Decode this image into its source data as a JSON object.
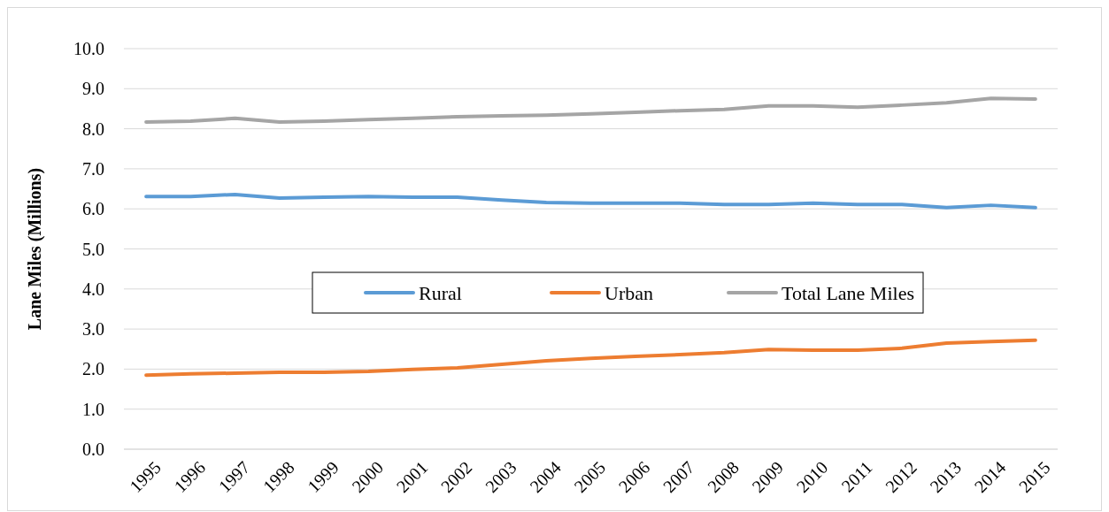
{
  "chart_data": {
    "type": "line",
    "ylabel": "Lane Miles (Millions)",
    "categories": [
      "1995",
      "1996",
      "1997",
      "1998",
      "1999",
      "2000",
      "2001",
      "2002",
      "2003",
      "2004",
      "2005",
      "2006",
      "2007",
      "2008",
      "2009",
      "2010",
      "2011",
      "2012",
      "2013",
      "2014",
      "2015"
    ],
    "series": [
      {
        "name": "Rural",
        "color": "#5b9bd5",
        "values": [
          6.31,
          6.31,
          6.36,
          6.27,
          6.29,
          6.31,
          6.29,
          6.29,
          6.22,
          6.16,
          6.14,
          6.14,
          6.14,
          6.11,
          6.11,
          6.14,
          6.11,
          6.11,
          6.03,
          6.09,
          6.03
        ]
      },
      {
        "name": "Urban",
        "color": "#ed7d31",
        "values": [
          1.85,
          1.88,
          1.9,
          1.92,
          1.92,
          1.94,
          1.99,
          2.03,
          2.12,
          2.21,
          2.27,
          2.32,
          2.36,
          2.41,
          2.49,
          2.47,
          2.47,
          2.52,
          2.65,
          2.69,
          2.72
        ]
      },
      {
        "name": "Total Lane Miles",
        "color": "#a5a5a5",
        "values": [
          8.17,
          8.19,
          8.26,
          8.17,
          8.19,
          8.23,
          8.26,
          8.3,
          8.32,
          8.34,
          8.37,
          8.41,
          8.45,
          8.48,
          8.57,
          8.57,
          8.54,
          8.59,
          8.65,
          8.76,
          8.74
        ]
      }
    ],
    "ylim": [
      0,
      10
    ],
    "yticks": [
      {
        "value": 0,
        "label": "0.0"
      },
      {
        "value": 1,
        "label": "1.0"
      },
      {
        "value": 2,
        "label": "2.0"
      },
      {
        "value": 3,
        "label": "3.0"
      },
      {
        "value": 4,
        "label": "4.0"
      },
      {
        "value": 5,
        "label": "5.0"
      },
      {
        "value": 6,
        "label": "6.0"
      },
      {
        "value": 7,
        "label": "7.0"
      },
      {
        "value": 8,
        "label": "8.0"
      },
      {
        "value": 9,
        "label": "9.0"
      },
      {
        "value": 10,
        "label": "10.0"
      }
    ],
    "grid": "y",
    "legend": "center",
    "marker": "none",
    "line_style": "solid"
  }
}
